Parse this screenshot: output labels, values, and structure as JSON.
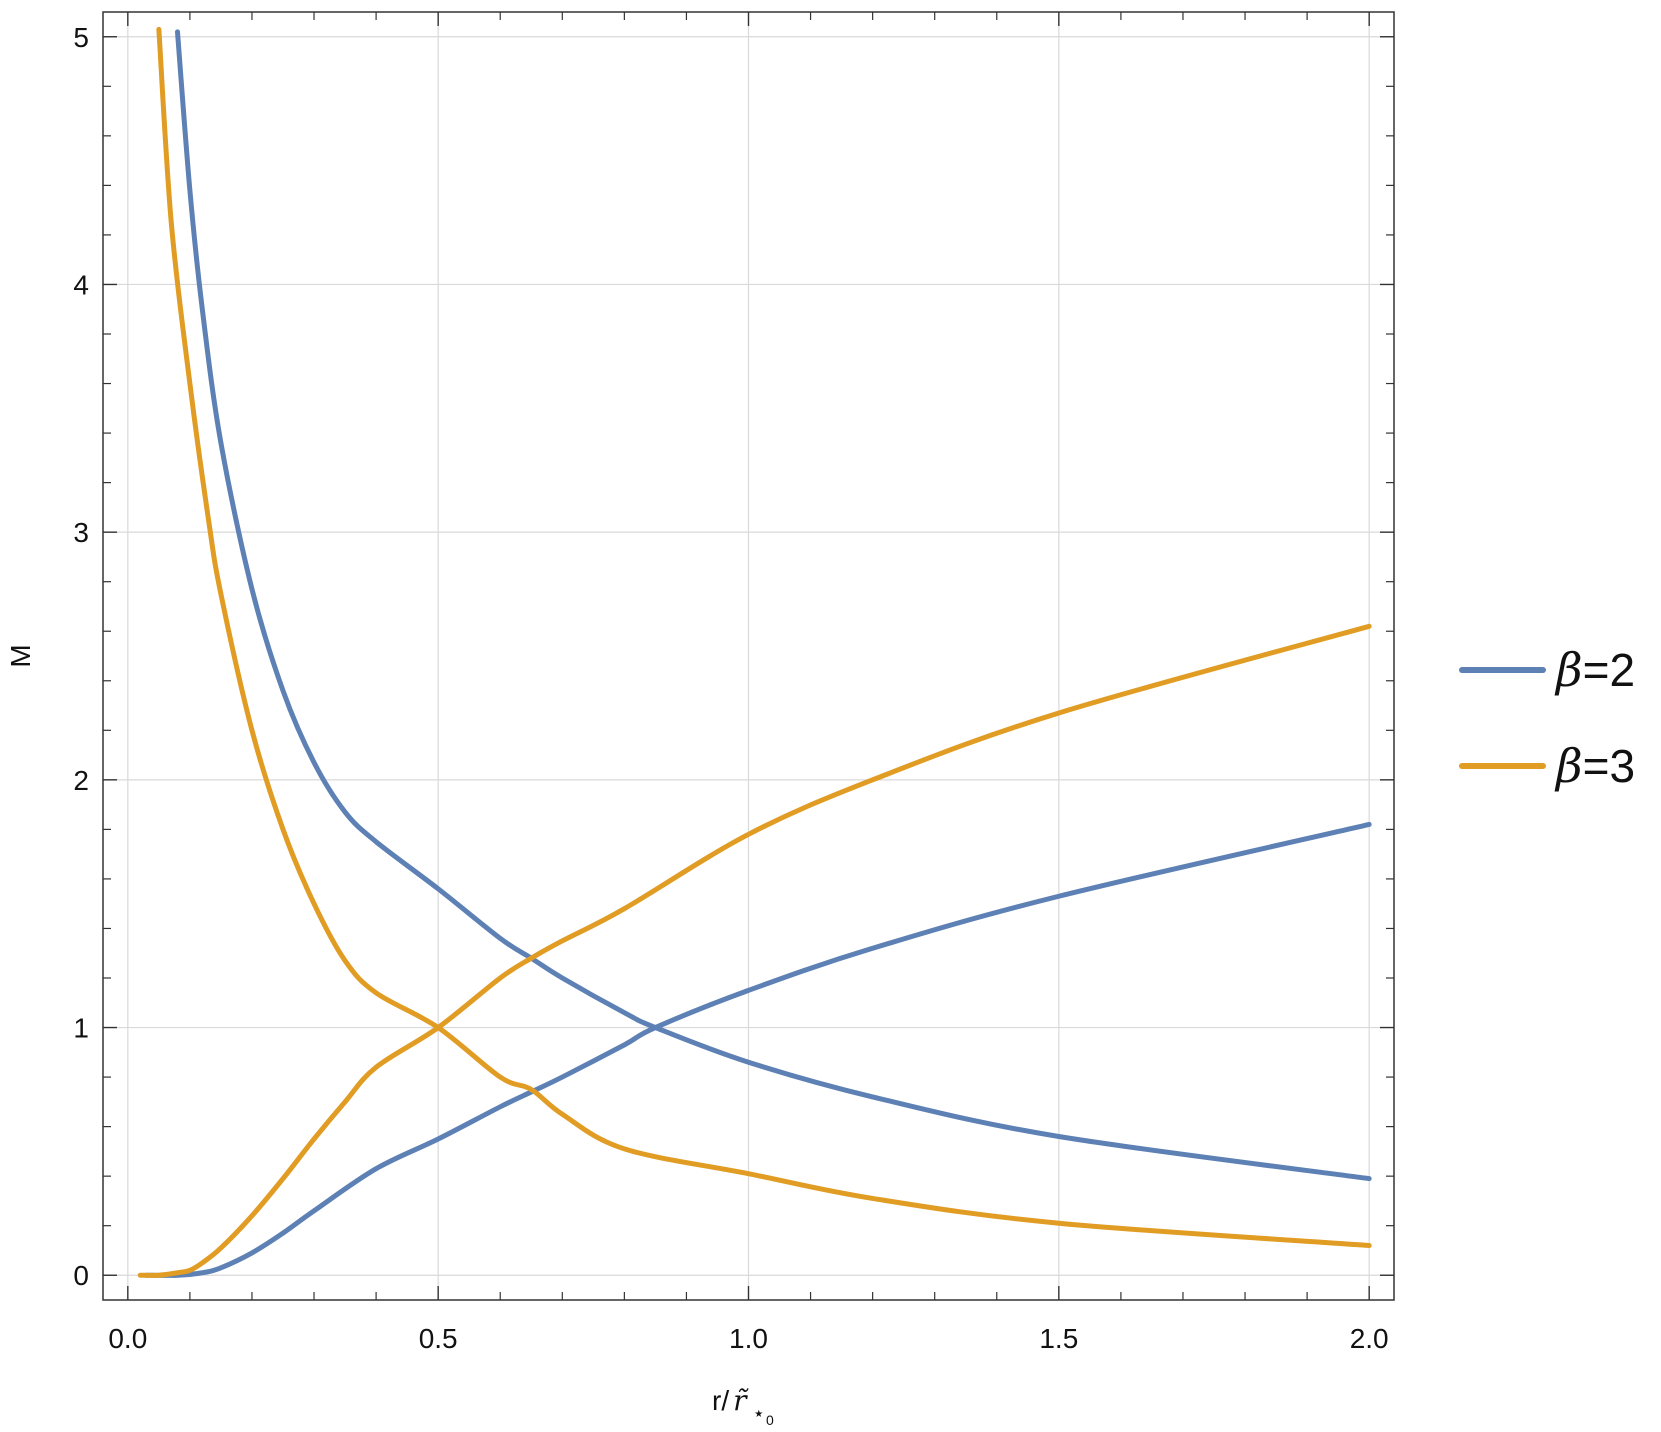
{
  "chart_data": {
    "type": "line",
    "title": "",
    "xlabel": "r/",
    "xlabel_symbol": "r̃",
    "xlabel_subscript": "⋆",
    "xlabel_subsubscript": "0",
    "ylabel": "M",
    "xlim": [
      -0.04,
      2.04
    ],
    "ylim": [
      -0.1,
      5.1
    ],
    "x_ticks": [
      "0.0",
      "0.5",
      "1.0",
      "1.5",
      "2.0"
    ],
    "x_tick_values": [
      0.0,
      0.5,
      1.0,
      1.5,
      2.0
    ],
    "y_ticks": [
      "0",
      "1",
      "2",
      "3",
      "4",
      "5"
    ],
    "y_tick_values": [
      0,
      1,
      2,
      3,
      4,
      5
    ],
    "grid": true,
    "legend_position": "right",
    "series": [
      {
        "name": "β=2",
        "legend_symbol": "β",
        "legend_value": "=2",
        "color": "#5e81b5",
        "curves": [
          {
            "x": [
              0.08,
              0.1,
              0.12,
              0.15,
              0.2,
              0.25,
              0.3,
              0.35,
              0.4,
              0.5,
              0.6,
              0.65,
              0.7,
              0.8,
              0.85,
              1.0,
              1.2,
              1.5,
              2.0
            ],
            "y": [
              5.02,
              4.38,
              3.9,
              3.36,
              2.77,
              2.36,
              2.07,
              1.87,
              1.75,
              1.56,
              1.36,
              1.28,
              1.2,
              1.06,
              1.0,
              0.86,
              0.72,
              0.56,
              0.39
            ]
          },
          {
            "x": [
              0.03,
              0.08,
              0.12,
              0.15,
              0.2,
              0.25,
              0.3,
              0.4,
              0.5,
              0.6,
              0.65,
              0.7,
              0.8,
              0.85,
              1.0,
              1.2,
              1.5,
              2.0
            ],
            "y": [
              0.0,
              0.0,
              0.01,
              0.03,
              0.09,
              0.17,
              0.26,
              0.43,
              0.55,
              0.68,
              0.74,
              0.8,
              0.93,
              1.0,
              1.15,
              1.32,
              1.53,
              1.82
            ]
          }
        ]
      },
      {
        "name": "β=3",
        "legend_symbol": "β",
        "legend_value": "=3",
        "color": "#e19c24",
        "curves": [
          {
            "x": [
              0.05,
              0.07,
              0.1,
              0.13,
              0.15,
              0.2,
              0.25,
              0.3,
              0.35,
              0.4,
              0.5,
              0.6,
              0.65,
              0.7,
              0.8,
              1.0,
              1.2,
              1.5,
              2.0
            ],
            "y": [
              5.03,
              4.25,
              3.6,
              3.05,
              2.75,
              2.2,
              1.8,
              1.5,
              1.27,
              1.14,
              1.0,
              0.8,
              0.75,
              0.65,
              0.51,
              0.41,
              0.31,
              0.21,
              0.12
            ]
          },
          {
            "x": [
              0.02,
              0.05,
              0.08,
              0.1,
              0.12,
              0.15,
              0.2,
              0.25,
              0.3,
              0.35,
              0.4,
              0.5,
              0.6,
              0.65,
              0.7,
              0.8,
              1.0,
              1.2,
              1.5,
              2.0
            ],
            "y": [
              0.0,
              0.0,
              0.01,
              0.02,
              0.05,
              0.11,
              0.24,
              0.39,
              0.55,
              0.7,
              0.84,
              1.0,
              1.2,
              1.28,
              1.35,
              1.48,
              1.78,
              2.0,
              2.27,
              2.62
            ]
          }
        ]
      }
    ]
  }
}
